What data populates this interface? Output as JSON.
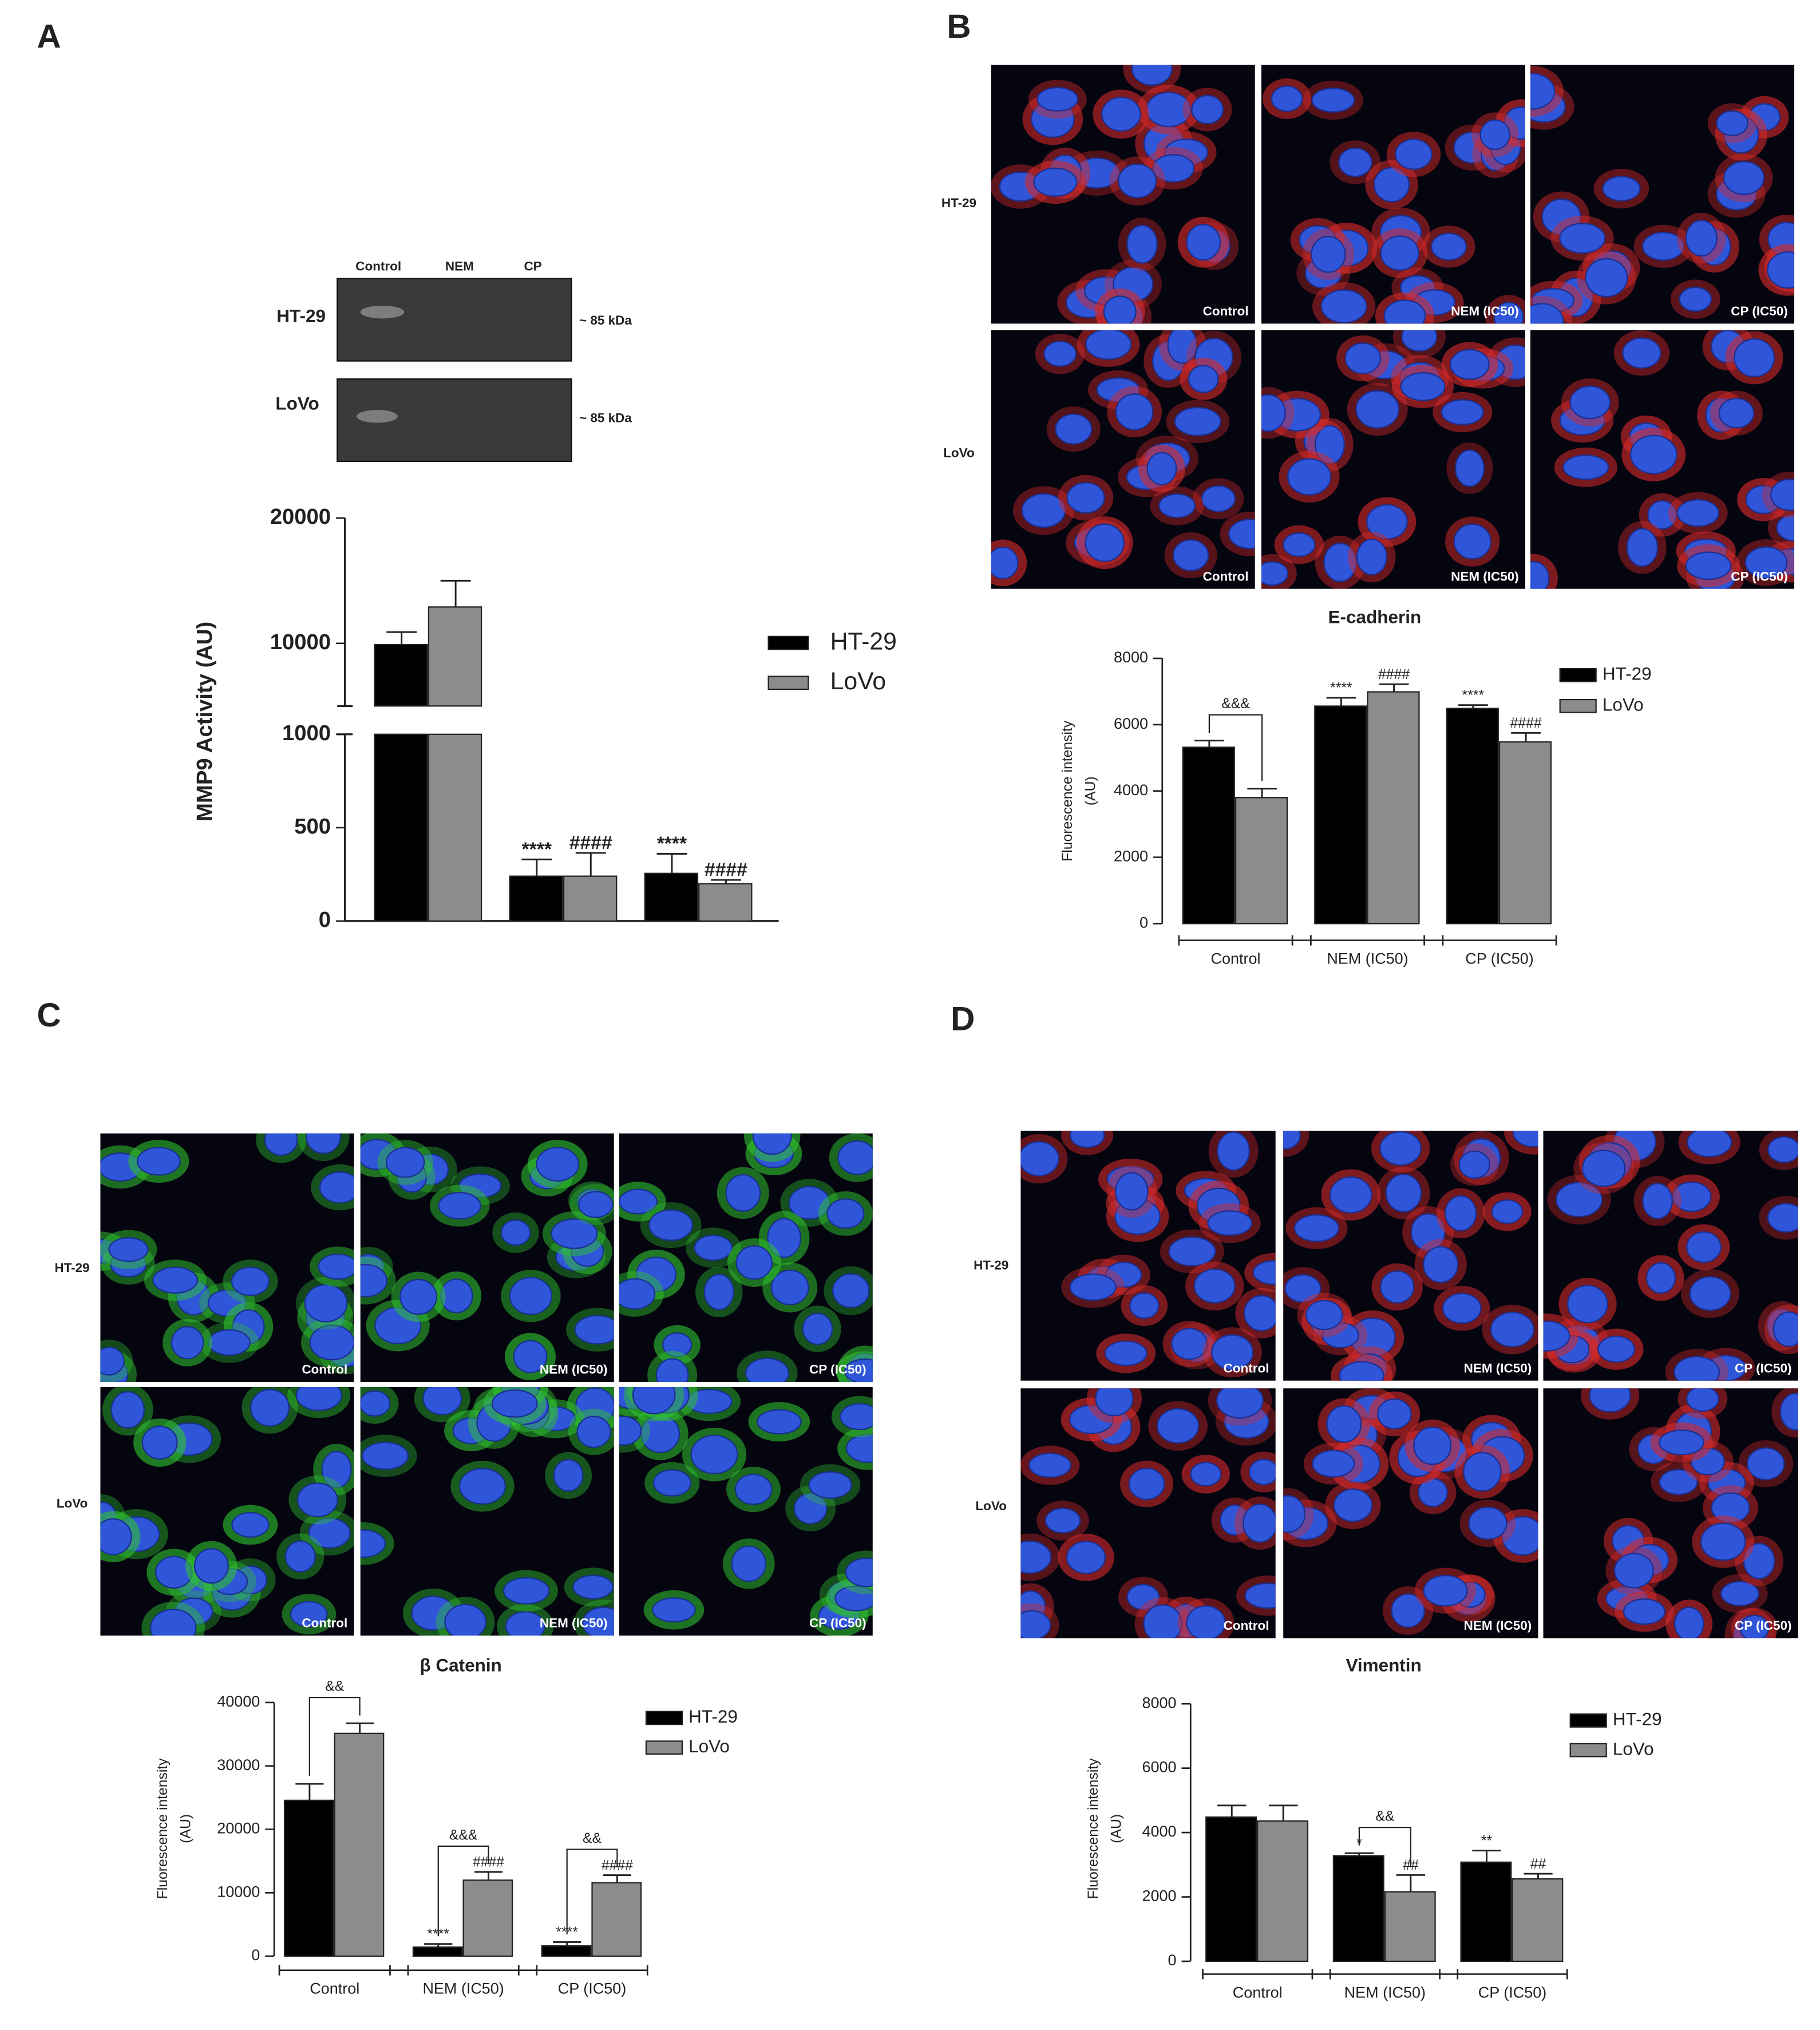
{
  "panel_labels": [
    "A",
    "B",
    "C",
    "D"
  ],
  "blot": {
    "columns": [
      "Control",
      "NEM",
      "CP"
    ],
    "rows": [
      "HT-29",
      "LoVo"
    ],
    "marker": "~ 85 kDa"
  },
  "micrographs": [
    {
      "rows": [
        "HT-29",
        "LoVo"
      ],
      "columns": [
        "Control",
        "NEM (IC50)",
        "CP (IC50)"
      ],
      "stain": "#d42a2a"
    },
    {
      "rows": [
        "HT-29",
        "LoVo"
      ],
      "columns": [
        "Control",
        "NEM (IC50)",
        "CP (IC50)"
      ],
      "stain": "#2fc02f"
    },
    {
      "rows": [
        "HT-29",
        "LoVo"
      ],
      "columns": [
        "Control",
        "NEM (IC50)",
        "CP (IC50)"
      ],
      "stain": "#d42a2a"
    }
  ],
  "chart_data": [
    {
      "type": "bar",
      "ylabel": "MMP9 Activity (AU)",
      "categories": [
        null,
        null,
        null
      ],
      "broken_axis": {
        "lower": [
          0,
          1000
        ],
        "upper": [
          5000,
          20000
        ]
      },
      "yticks": [
        0,
        500,
        1000,
        10000,
        20000
      ],
      "series": [
        {
          "name": "HT-29",
          "color": "#000000",
          "values": [
            9900,
            240,
            255
          ],
          "errors": [
            1000,
            90,
            105
          ],
          "significance": [
            null,
            "****",
            "****"
          ]
        },
        {
          "name": "LoVo",
          "color": "#8c8c8c",
          "values": [
            12900,
            240,
            200
          ],
          "errors": [
            2100,
            125,
            20
          ],
          "significance": [
            null,
            "####",
            "####"
          ]
        }
      ]
    },
    {
      "type": "bar",
      "title": "E-cadherin",
      "ylabel": [
        "Fluorescence intensity",
        "(AU)"
      ],
      "categories": [
        "Control",
        "NEM (IC50)",
        "CP (IC50)"
      ],
      "ylim": [
        0,
        8000
      ],
      "yticks": [
        0,
        2000,
        4000,
        6000,
        8000
      ],
      "bracket_labels": [
        "&&&",
        null,
        null
      ],
      "series": [
        {
          "name": "HT-29",
          "color": "#000000",
          "values": [
            5320,
            6560,
            6490
          ],
          "errors": [
            200,
            250,
            100
          ],
          "significance": [
            null,
            "****",
            "****"
          ]
        },
        {
          "name": "LoVo",
          "color": "#8c8c8c",
          "values": [
            3800,
            6990,
            5480
          ],
          "errors": [
            270,
            230,
            270
          ],
          "significance": [
            null,
            "####",
            "####"
          ]
        }
      ]
    },
    {
      "type": "bar",
      "title": "β Catenin",
      "ylabel": [
        "Fluorescence intensity",
        "(AU)"
      ],
      "categories": [
        "Control",
        "NEM (IC50)",
        "CP (IC50)"
      ],
      "ylim": [
        0,
        40000
      ],
      "yticks": [
        0,
        10000,
        20000,
        30000,
        40000
      ],
      "bracket_labels": [
        "&&",
        "&&&",
        "&&"
      ],
      "series": [
        {
          "name": "HT-29",
          "color": "#000000",
          "values": [
            24570,
            1420,
            1620
          ],
          "errors": [
            2600,
            500,
            600
          ],
          "significance": [
            null,
            "****",
            "****"
          ]
        },
        {
          "name": "LoVo",
          "color": "#8c8c8c",
          "values": [
            35130,
            11980,
            11570
          ],
          "errors": [
            1600,
            1300,
            1200
          ],
          "significance": [
            null,
            "####",
            "####"
          ]
        }
      ]
    },
    {
      "type": "bar",
      "title": "Vimentin",
      "ylabel": [
        "Fluorescence intensity",
        "(AU)"
      ],
      "categories": [
        "Control",
        "NEM (IC50)",
        "CP (IC50)"
      ],
      "ylim": [
        0,
        8000
      ],
      "yticks": [
        0,
        2000,
        4000,
        6000,
        8000
      ],
      "bracket_labels": [
        null,
        "&&",
        null
      ],
      "series": [
        {
          "name": "HT-29",
          "color": "#000000",
          "values": [
            4480,
            3280,
            3080
          ],
          "errors": [
            360,
            80,
            360
          ],
          "significance": [
            null,
            "*",
            "**"
          ]
        },
        {
          "name": "LoVo",
          "color": "#8c8c8c",
          "values": [
            4360,
            2160,
            2560
          ],
          "errors": [
            480,
            520,
            160
          ],
          "significance": [
            null,
            "##",
            "##"
          ]
        }
      ]
    }
  ]
}
